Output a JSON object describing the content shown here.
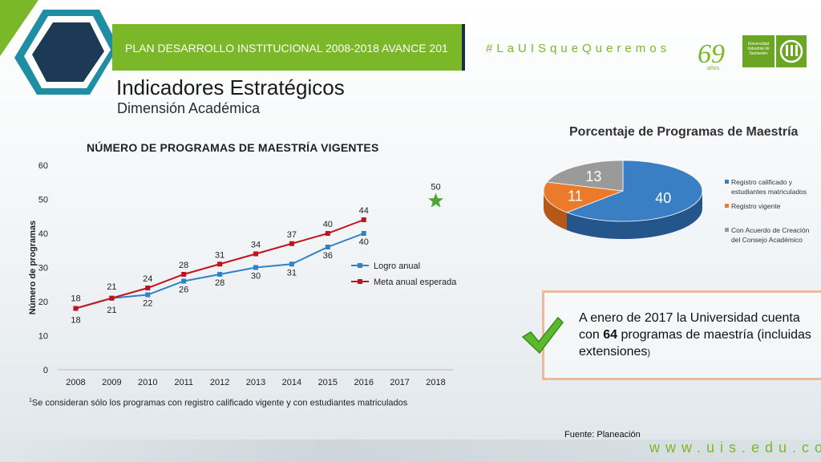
{
  "header": {
    "banner": "PLAN DESARROLLO INSTITUCIONAL 2008-2018 AVANCE 201",
    "hashtag": "#LaUISqueQueremos",
    "logo_text": "Universidad Industrial de Santander",
    "anniversary_text": "años"
  },
  "page": {
    "title": "Indicadores Estratégicos",
    "subtitle": "Dimensión Académica"
  },
  "callout": {
    "text_before": "A enero de 2017 la Universidad cuenta con ",
    "highlight": "64",
    "text_after": " programas de maestría (incluidas extensiones",
    "paren": ")"
  },
  "footnote": {
    "marker": "1",
    "text": "Se consideran sólo los programas con registro calificado vigente y con estudiantes matriculados"
  },
  "source": "Fuente: Planeación",
  "website": "www.uis.edu.co",
  "colors": {
    "brand_green": "#7ab829",
    "logro": "#2e82c8",
    "meta": "#c0141c",
    "star": "#4ea63a",
    "pie_blue": "#3a7fc4",
    "pie_orange": "#ec7a2b",
    "pie_gray": "#9a9a9a"
  },
  "chart_data": [
    {
      "type": "line",
      "title": "NÚMERO DE PROGRAMAS DE MAESTRÍA VIGENTES",
      "ylabel": "Número de programas",
      "xlabel": "",
      "x": [
        "2008",
        "2009",
        "2010",
        "2011",
        "2012",
        "2013",
        "2014",
        "2015",
        "2016",
        "2017",
        "2018"
      ],
      "ylim": [
        0,
        60
      ],
      "yticks": [
        0,
        10,
        20,
        30,
        40,
        50,
        60
      ],
      "grid": false,
      "legend": "right",
      "series": [
        {
          "name": "Logro anual",
          "values": [
            18,
            21,
            22,
            26,
            28,
            30,
            31,
            36,
            40,
            null,
            null
          ]
        },
        {
          "name": "Meta anual esperada",
          "values": [
            18,
            21,
            24,
            28,
            31,
            34,
            37,
            40,
            44,
            null,
            null
          ]
        }
      ],
      "annotations": [
        {
          "x": "2018",
          "y": 50,
          "label": "50",
          "marker": "star"
        }
      ]
    },
    {
      "type": "pie",
      "title": "Porcentaje de Programas de Maestría",
      "legend": "right",
      "slices": [
        {
          "name": "Registro calificado y estudiantes matriculados",
          "value": 40
        },
        {
          "name": "Registro vigente",
          "value": 11
        },
        {
          "name": "Con Acuerdo de Creación del Consejo Académico",
          "value": 13
        }
      ]
    }
  ]
}
